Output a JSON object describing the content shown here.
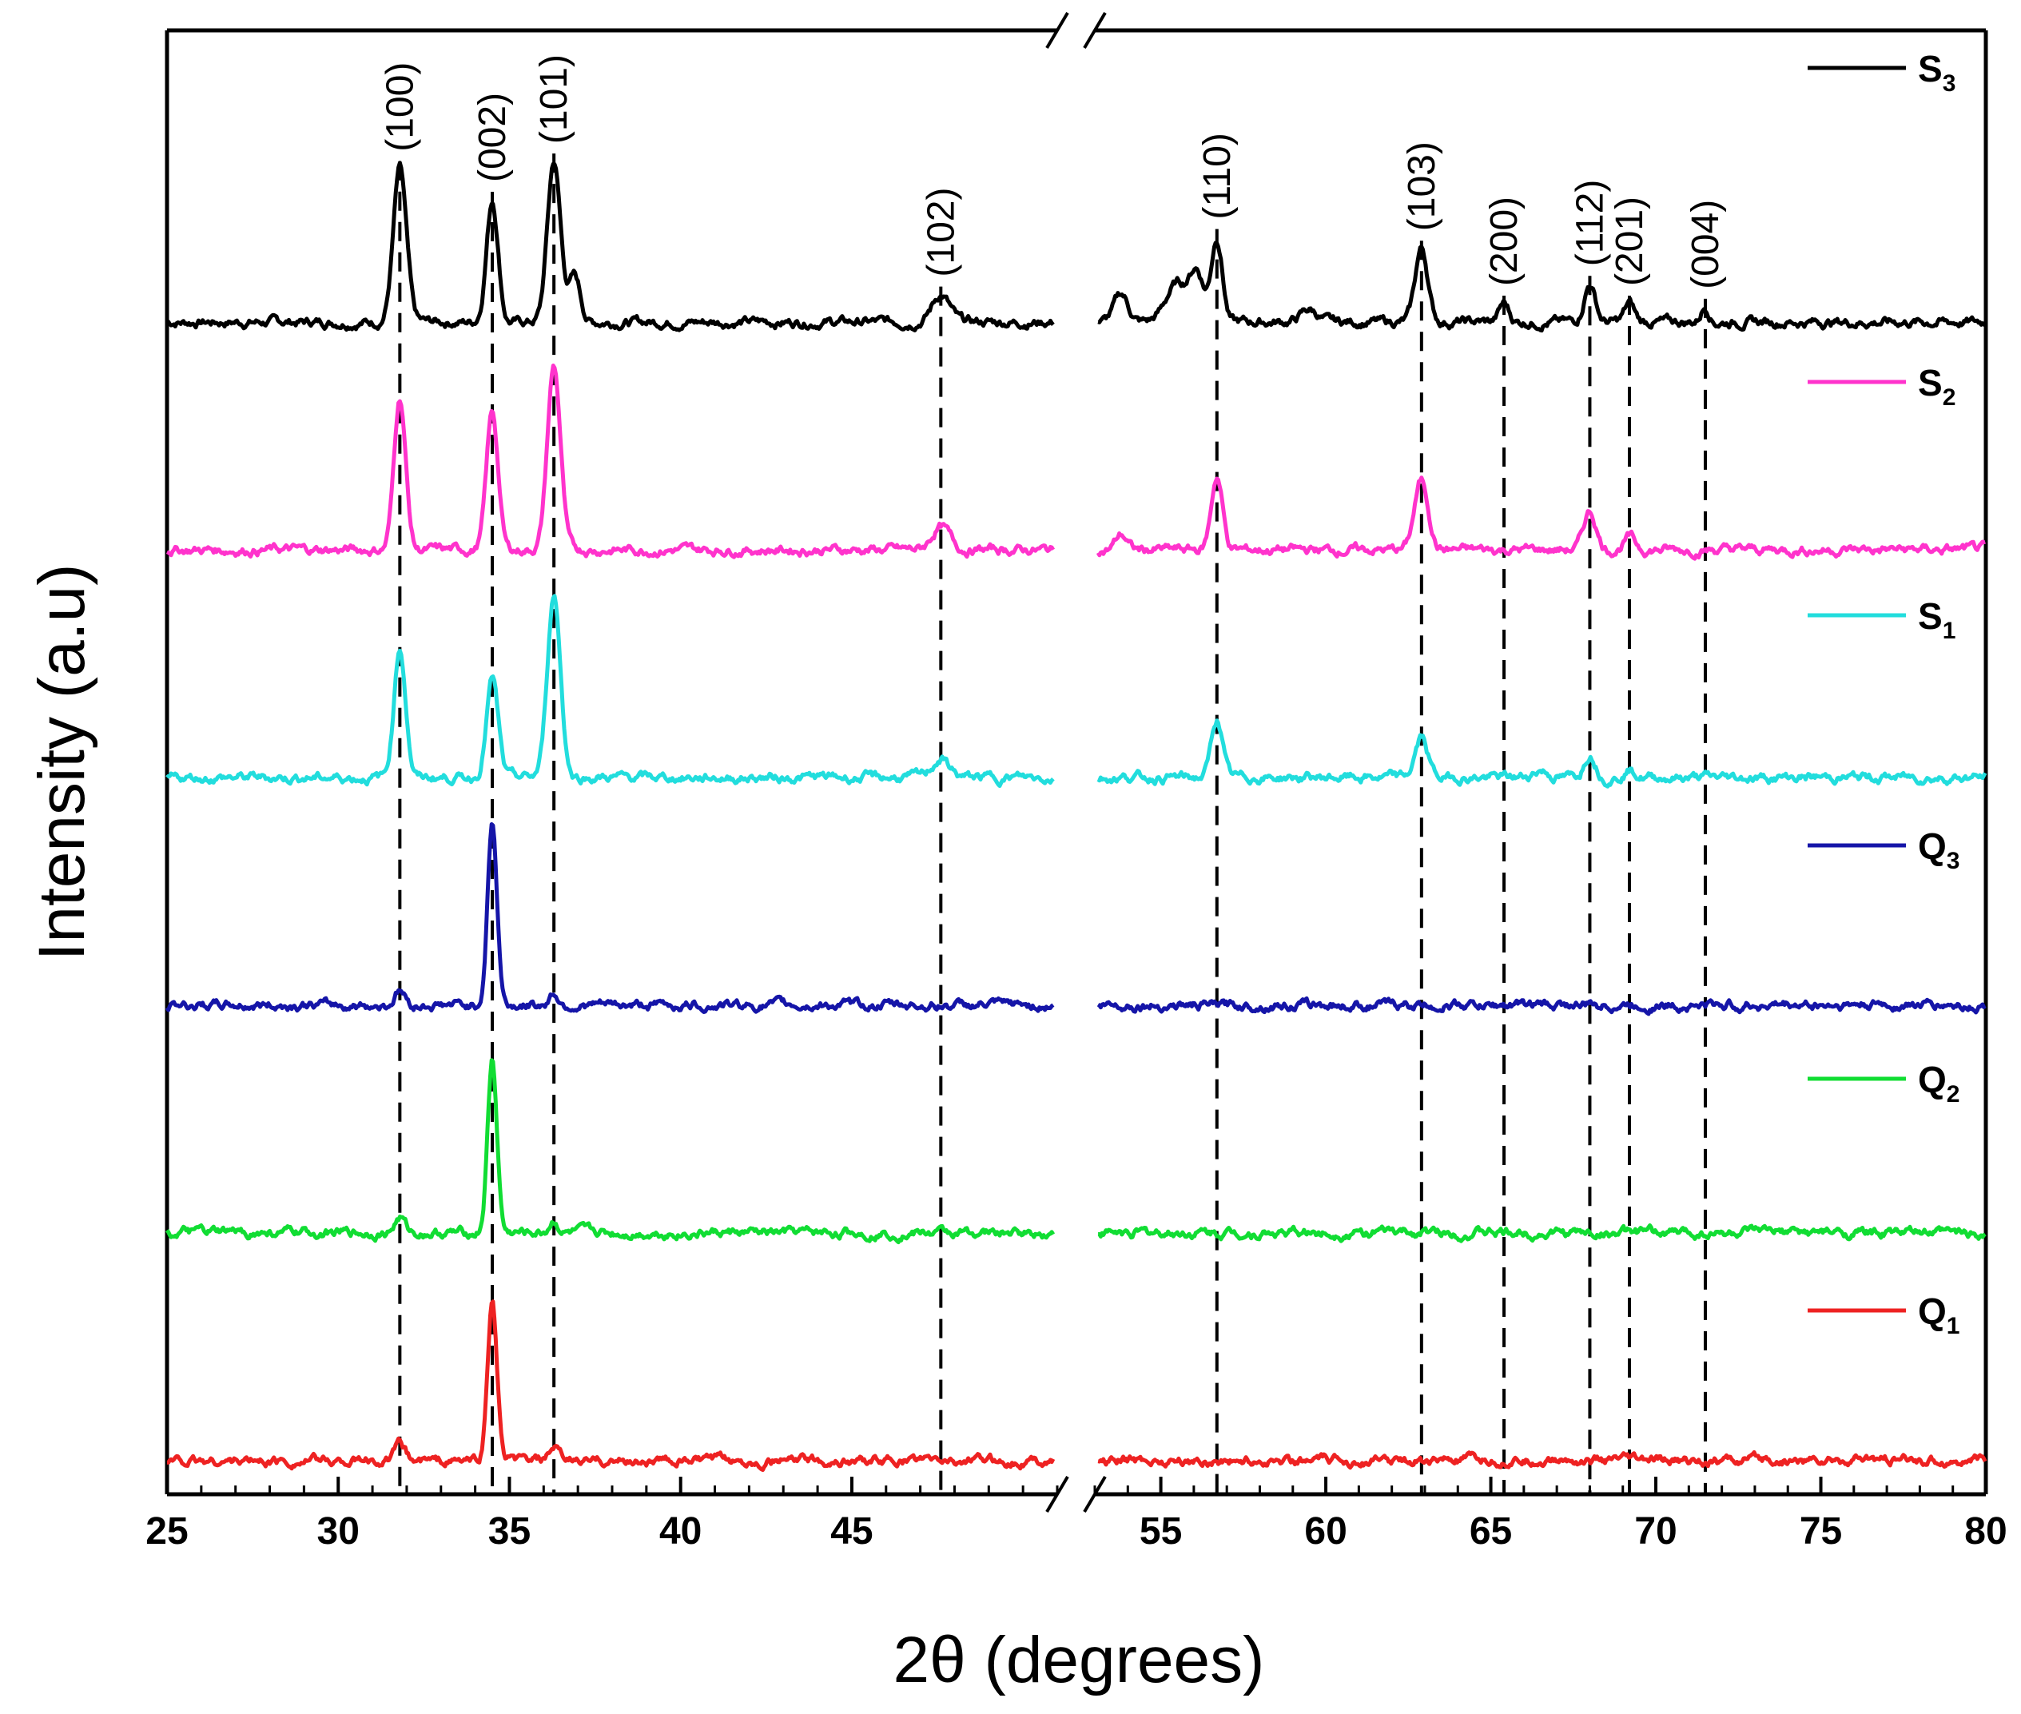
{
  "chart_data": {
    "type": "line",
    "title": "",
    "xlabel": "2θ (degrees)",
    "ylabel": "Intensity (a.u)",
    "xlim": [
      25,
      80
    ],
    "axis_break": [
      51,
      53
    ],
    "xticks": [
      25,
      30,
      35,
      40,
      45,
      55,
      60,
      65,
      70,
      75,
      80
    ],
    "peaks": [
      {
        "hkl": "(100)",
        "x": 31.8
      },
      {
        "hkl": "(002)",
        "x": 34.5
      },
      {
        "hkl": "(101)",
        "x": 36.3
      },
      {
        "hkl": "(102)",
        "x": 47.6
      },
      {
        "hkl": "(110)",
        "x": 56.7
      },
      {
        "hkl": "(103)",
        "x": 62.9
      },
      {
        "hkl": "(200)",
        "x": 65.4
      },
      {
        "hkl": "(112)",
        "x": 68.0
      },
      {
        "hkl": "(201)",
        "x": 69.2
      },
      {
        "hkl": "(004)",
        "x": 71.5
      }
    ],
    "series": [
      {
        "name": "S",
        "sub": "3",
        "color": "#000000",
        "offset": 5,
        "scale": 0.75,
        "peaks": [
          [
            31.8,
            1.0,
            0.45
          ],
          [
            34.5,
            0.8,
            0.4
          ],
          [
            36.3,
            1.05,
            0.45
          ],
          [
            36.9,
            0.3,
            0.4
          ],
          [
            47.6,
            0.18,
            0.6
          ],
          [
            53.8,
            0.18,
            0.5
          ],
          [
            55.5,
            0.25,
            0.8
          ],
          [
            56.1,
            0.3,
            0.5
          ],
          [
            56.7,
            0.55,
            0.4
          ],
          [
            59.5,
            0.08,
            0.6
          ],
          [
            62.9,
            0.48,
            0.45
          ],
          [
            65.4,
            0.12,
            0.35
          ],
          [
            68.0,
            0.25,
            0.4
          ],
          [
            69.2,
            0.12,
            0.35
          ],
          [
            71.5,
            0.1,
            0.3
          ]
        ]
      },
      {
        "name": "S",
        "sub": "2",
        "color": "#ff33cc",
        "offset": 4,
        "scale": 0.75,
        "peaks": [
          [
            31.8,
            1.0,
            0.4
          ],
          [
            34.5,
            0.9,
            0.4
          ],
          [
            36.3,
            1.2,
            0.45
          ],
          [
            47.6,
            0.15,
            0.6
          ],
          [
            53.8,
            0.1,
            0.4
          ],
          [
            56.7,
            0.48,
            0.4
          ],
          [
            62.9,
            0.45,
            0.5
          ],
          [
            68.0,
            0.25,
            0.45
          ],
          [
            69.2,
            0.08,
            0.4
          ]
        ]
      },
      {
        "name": "S",
        "sub": "1",
        "color": "#22dddd",
        "offset": 3,
        "scale": 0.75,
        "peaks": [
          [
            31.8,
            0.85,
            0.4
          ],
          [
            34.5,
            0.65,
            0.4
          ],
          [
            36.3,
            1.2,
            0.45
          ],
          [
            47.6,
            0.12,
            0.6
          ],
          [
            56.7,
            0.38,
            0.4
          ],
          [
            62.9,
            0.26,
            0.45
          ],
          [
            66.5,
            0.05,
            0.5
          ],
          [
            68.0,
            0.16,
            0.4
          ],
          [
            69.2,
            0.05,
            0.4
          ]
        ]
      },
      {
        "name": "Q",
        "sub": "3",
        "color": "#1515a8",
        "offset": 2,
        "scale": 0.75,
        "peaks": [
          [
            31.8,
            0.1,
            0.35
          ],
          [
            34.5,
            1.2,
            0.32
          ],
          [
            36.3,
            0.08,
            0.3
          ]
        ]
      },
      {
        "name": "Q",
        "sub": "2",
        "color": "#11dd33",
        "offset": 1,
        "scale": 0.75,
        "peaks": [
          [
            31.8,
            0.1,
            0.35
          ],
          [
            34.5,
            1.13,
            0.32
          ],
          [
            36.3,
            0.08,
            0.3
          ]
        ]
      },
      {
        "name": "Q",
        "sub": "1",
        "color": "#ee2222",
        "offset": 0,
        "scale": 0.75,
        "peaks": [
          [
            31.8,
            0.1,
            0.35
          ],
          [
            34.5,
            1.05,
            0.32
          ],
          [
            36.3,
            0.08,
            0.3
          ]
        ]
      }
    ]
  }
}
